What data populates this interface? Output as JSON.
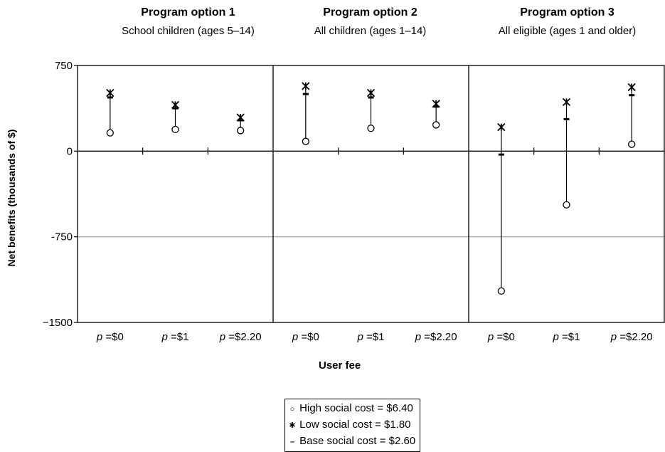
{
  "chart_data": {
    "type": "scatter",
    "panels": [
      {
        "title": "Program option 1",
        "subtitle": "School children (ages 5–14)"
      },
      {
        "title": "Program option 2",
        "subtitle": "All children (ages 1–14)"
      },
      {
        "title": "Program option 3",
        "subtitle": "All eligible (ages 1 and older)"
      }
    ],
    "categories": [
      "p =$0",
      "p =$1",
      "p =$2.20"
    ],
    "category_prefix": "p",
    "category_values": [
      "=$0",
      "=$1",
      "=$2.20"
    ],
    "xlabel": "User fee",
    "ylabel": "Net benefits (thousands of $)",
    "ylim": [
      -1500,
      750
    ],
    "yticks": [
      750,
      0,
      -750,
      -1500
    ],
    "ytick_labels": [
      "750",
      "0",
      "-750",
      "−1500"
    ],
    "series": [
      {
        "name": "High social cost  = $6.40",
        "marker": "circle",
        "values": [
          [
            160,
            190,
            180
          ],
          [
            85,
            200,
            230
          ],
          [
            -1225,
            -470,
            60
          ]
        ]
      },
      {
        "name": "Low social cost  = $1.80",
        "marker": "asterisk",
        "values": [
          [
            510,
            405,
            295
          ],
          [
            570,
            510,
            415
          ],
          [
            210,
            430,
            560
          ]
        ]
      },
      {
        "name": "Base social cost = $2.60",
        "marker": "dash",
        "values": [
          [
            470,
            375,
            270
          ],
          [
            500,
            470,
            390
          ],
          [
            -30,
            280,
            490
          ]
        ]
      }
    ],
    "grid": {
      "horizontal_at": [
        -750
      ]
    },
    "legend_position": "bottom-center"
  }
}
